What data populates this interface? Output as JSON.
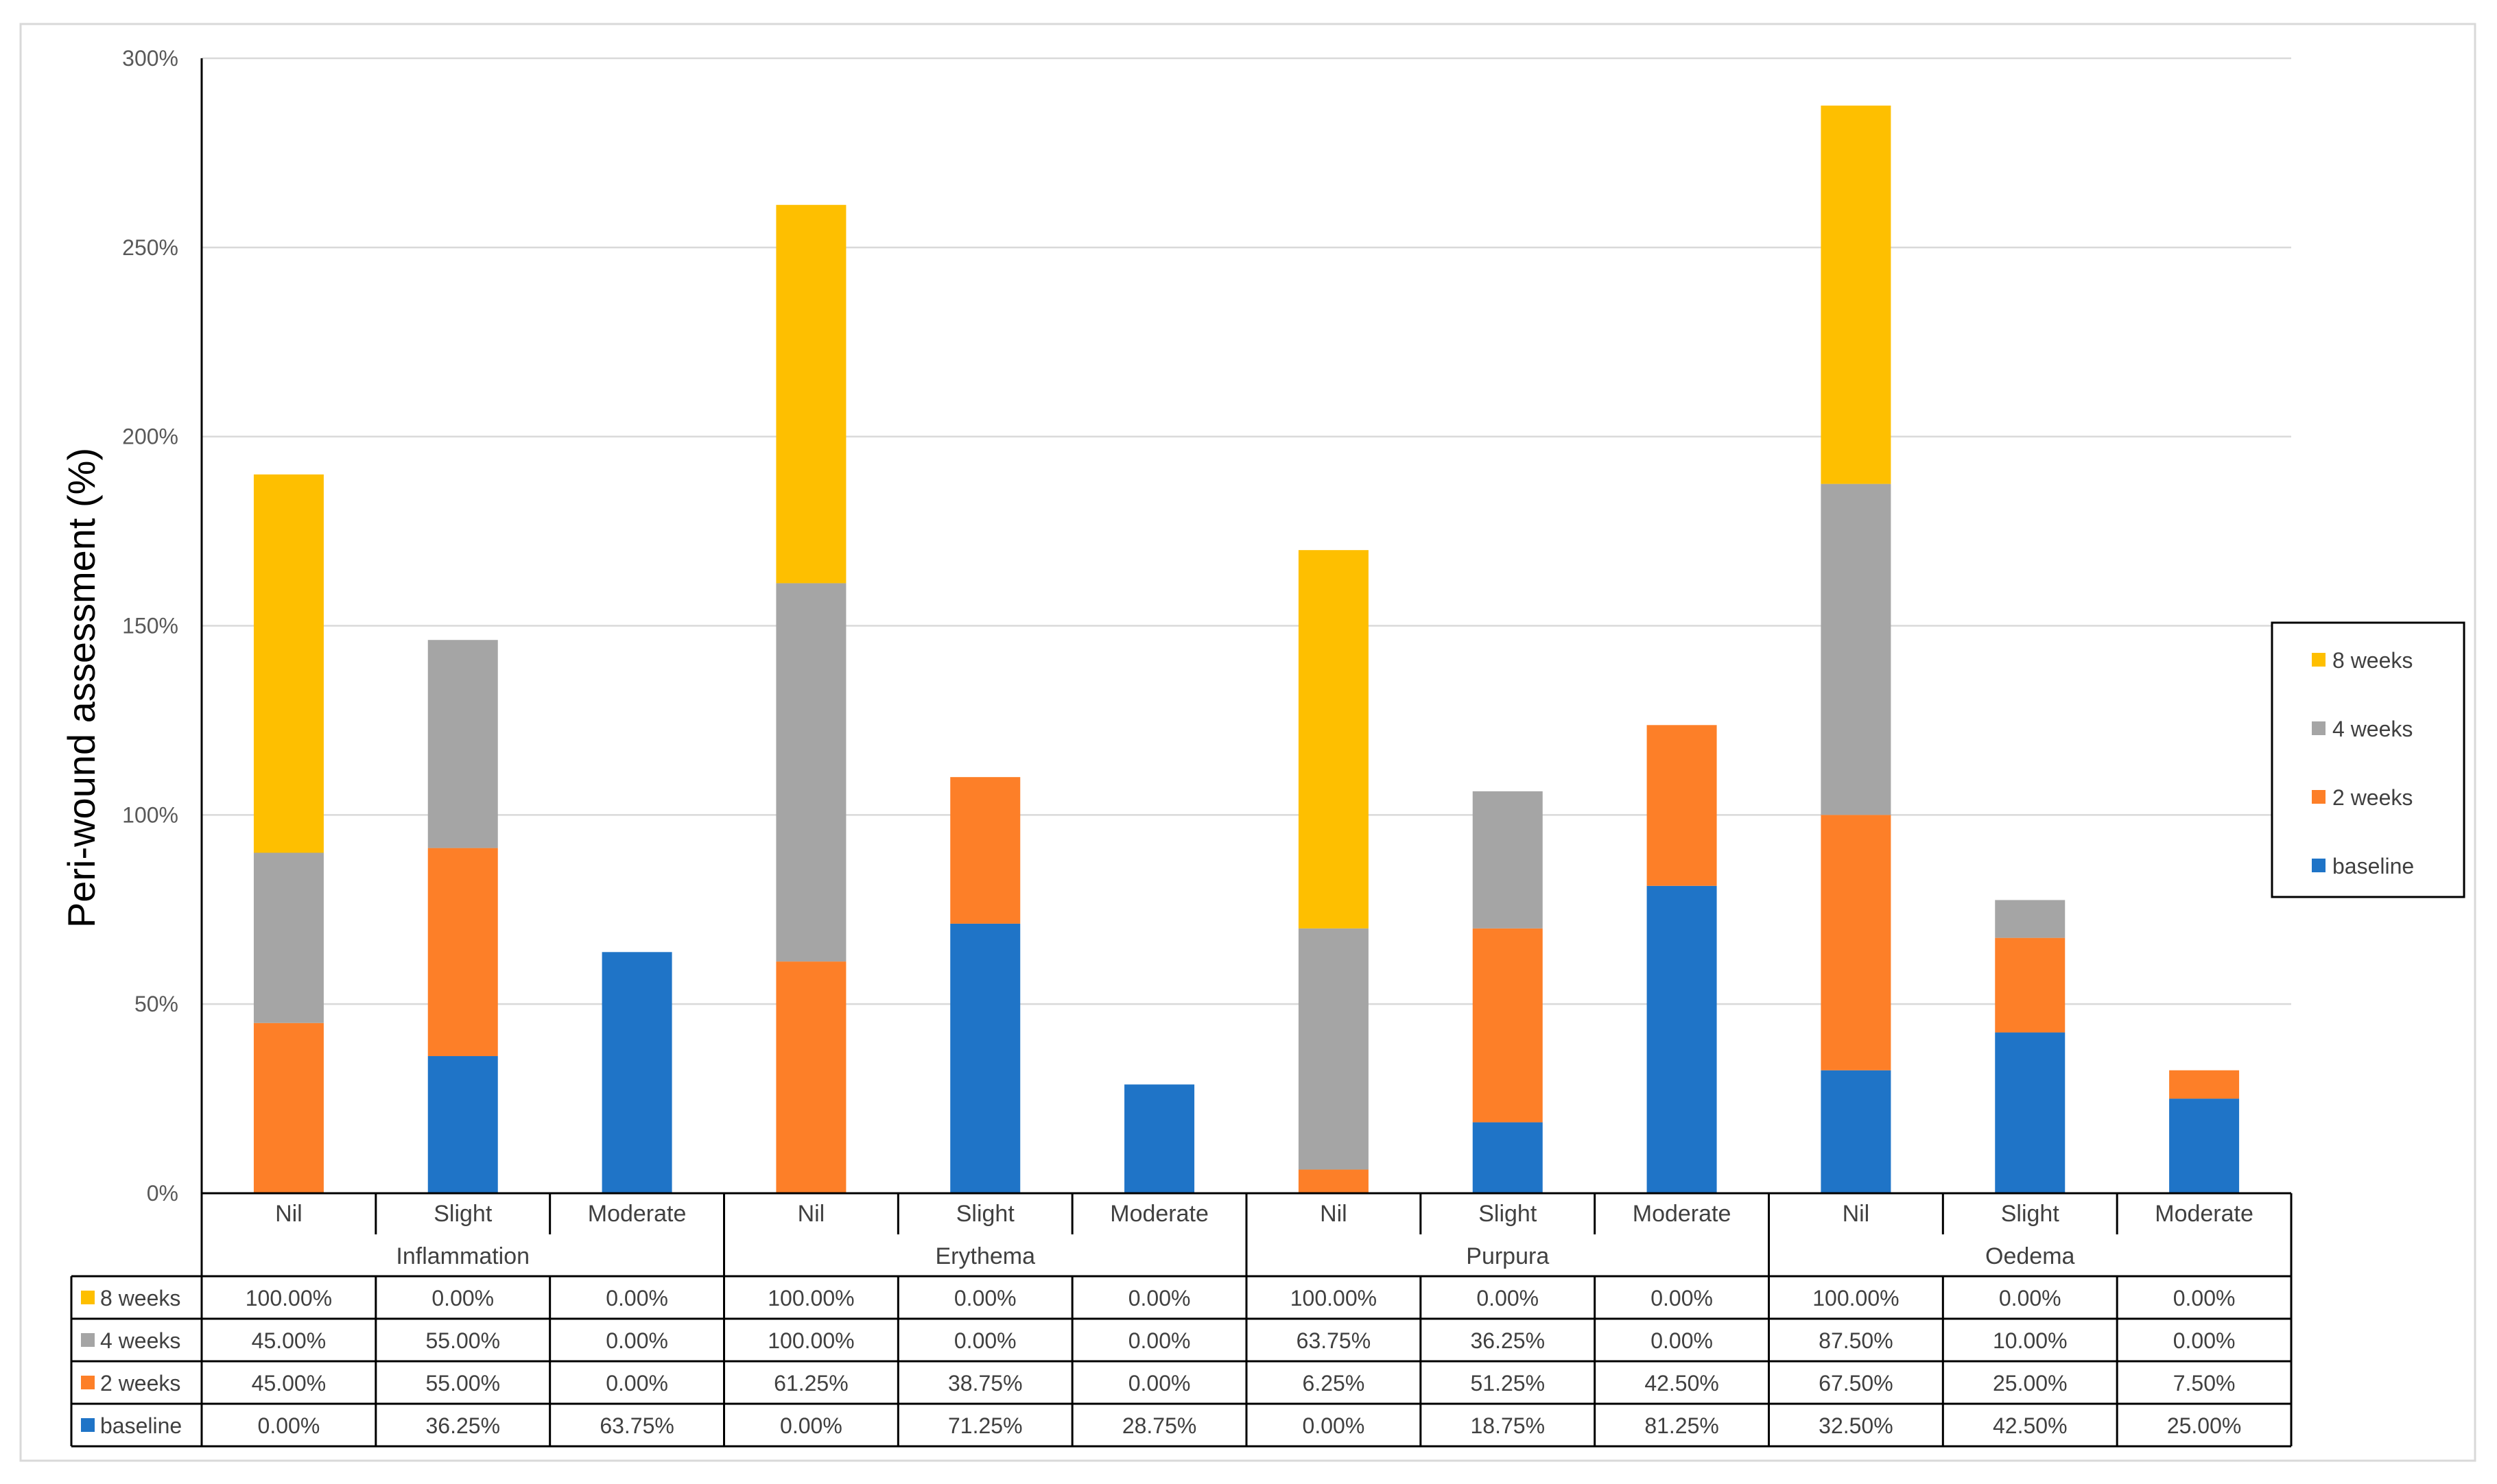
{
  "chart_data": {
    "type": "bar",
    "stacked": true,
    "ylabel": "Peri-wound assessment (%)",
    "ylim": [
      0,
      300
    ],
    "y_ticks": [
      0,
      50,
      100,
      150,
      200,
      250,
      300
    ],
    "y_tick_labels": [
      "0%",
      "50%",
      "100%",
      "150%",
      "200%",
      "250%",
      "300%"
    ],
    "groups": [
      "Inflammation",
      "Erythema",
      "Purpura",
      "Oedema"
    ],
    "subcategories": [
      "Nil",
      "Slight",
      "Moderate"
    ],
    "categories": [
      "Nil",
      "Slight",
      "Moderate",
      "Nil",
      "Slight",
      "Moderate",
      "Nil",
      "Slight",
      "Moderate",
      "Nil",
      "Slight",
      "Moderate"
    ],
    "series": [
      {
        "name": "baseline",
        "color": "#1F74C7",
        "values": [
          0,
          36.25,
          63.75,
          0,
          71.25,
          28.75,
          0,
          18.75,
          81.25,
          32.5,
          42.5,
          25
        ],
        "labels": [
          "0.00%",
          "36.25%",
          "63.75%",
          "0.00%",
          "71.25%",
          "28.75%",
          "0.00%",
          "18.75%",
          "81.25%",
          "32.50%",
          "42.50%",
          "25.00%"
        ]
      },
      {
        "name": "2 weeks",
        "color": "#FD7F28",
        "values": [
          45,
          55,
          0,
          61.25,
          38.75,
          0,
          6.25,
          51.25,
          42.5,
          67.5,
          25,
          7.5
        ],
        "labels": [
          "45.00%",
          "55.00%",
          "0.00%",
          "61.25%",
          "38.75%",
          "0.00%",
          "6.25%",
          "51.25%",
          "42.50%",
          "67.50%",
          "25.00%",
          "7.50%"
        ]
      },
      {
        "name": "4 weeks",
        "color": "#A5A5A5",
        "values": [
          45,
          55,
          0,
          100,
          0,
          0,
          63.75,
          36.25,
          0,
          87.5,
          10,
          0
        ],
        "labels": [
          "45.00%",
          "55.00%",
          "0.00%",
          "100.00%",
          "0.00%",
          "0.00%",
          "63.75%",
          "36.25%",
          "0.00%",
          "87.50%",
          "10.00%",
          "0.00%"
        ]
      },
      {
        "name": "8 weeks",
        "color": "#FEBF00",
        "values": [
          100,
          0,
          0,
          100,
          0,
          0,
          100,
          0,
          0,
          100,
          0,
          0
        ],
        "labels": [
          "100.00%",
          "0.00%",
          "0.00%",
          "100.00%",
          "0.00%",
          "0.00%",
          "100.00%",
          "0.00%",
          "0.00%",
          "100.00%",
          "0.00%",
          "0.00%"
        ]
      }
    ],
    "legend": {
      "placement": "right",
      "order": [
        "8 weeks",
        "4 weeks",
        "2 weeks",
        "baseline"
      ]
    },
    "table_row_order": [
      "8 weeks",
      "4 weeks",
      "2 weeks",
      "baseline"
    ],
    "grid": true
  }
}
